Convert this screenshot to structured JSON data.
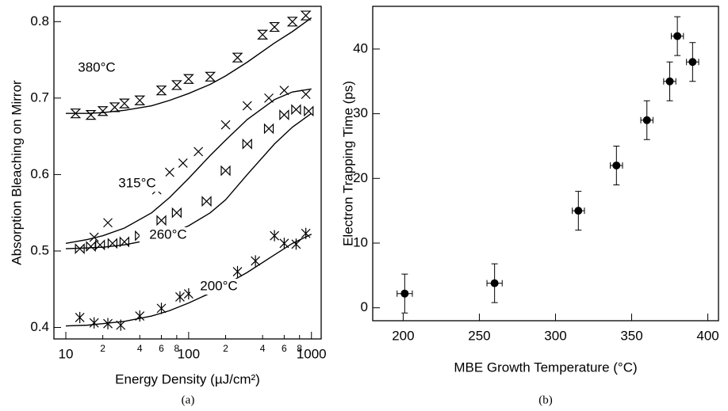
{
  "chart_data": [
    {
      "type": "line",
      "xscale": "log",
      "caption": "(a)",
      "xlabel": "Energy Density (µJ/cm²)",
      "ylabel": "Absorption Bleaching on Mirror",
      "xlim": [
        8,
        1200
      ],
      "ylim": [
        0.385,
        0.82
      ],
      "xticks": [
        10,
        {
          "value": 20,
          "label": "2"
        },
        {
          "value": 40,
          "label": "4"
        },
        {
          "value": 60,
          "label": "6"
        },
        {
          "value": 80,
          "label": "8"
        },
        100,
        {
          "value": 200,
          "label": "2"
        },
        {
          "value": 400,
          "label": "4"
        },
        {
          "value": 600,
          "label": "6"
        },
        {
          "value": 800,
          "label": "8"
        },
        1000
      ],
      "yticks": [
        0.4,
        0.5,
        0.6,
        0.7,
        0.8
      ],
      "fit_x": [
        10,
        15,
        20,
        30,
        50,
        70,
        100,
        150,
        200,
        300,
        500,
        700,
        1000
      ],
      "series": [
        {
          "name": "380°C",
          "color": "#000000",
          "marker": "hourglass",
          "x": [
            12,
            16,
            20,
            25,
            30,
            40,
            60,
            80,
            100,
            150,
            250,
            400,
            500,
            700,
            900
          ],
          "values": [
            0.68,
            0.678,
            0.683,
            0.688,
            0.693,
            0.697,
            0.71,
            0.717,
            0.725,
            0.728,
            0.753,
            0.783,
            0.793,
            0.8,
            0.808
          ],
          "fit": [
            0.68,
            0.68,
            0.681,
            0.684,
            0.69,
            0.697,
            0.706,
            0.718,
            0.729,
            0.747,
            0.772,
            0.787,
            0.805
          ]
        },
        {
          "name": "315°C",
          "color": "#000000",
          "marker": "x",
          "x": [
            17,
            22,
            55,
            70,
            90,
            120,
            200,
            300,
            450,
            600,
            900
          ],
          "values": [
            0.518,
            0.537,
            0.58,
            0.603,
            0.615,
            0.63,
            0.665,
            0.69,
            0.7,
            0.71,
            0.705
          ],
          "fit": [
            0.51,
            0.515,
            0.52,
            0.53,
            0.55,
            0.57,
            0.595,
            0.625,
            0.645,
            0.672,
            0.698,
            0.708,
            0.712
          ]
        },
        {
          "name": "260°C",
          "color": "#000000",
          "marker": "bowtie",
          "x": [
            13,
            16,
            19,
            24,
            30,
            40,
            60,
            80,
            140,
            200,
            300,
            450,
            600,
            750,
            950
          ],
          "values": [
            0.503,
            0.506,
            0.508,
            0.51,
            0.512,
            0.52,
            0.54,
            0.55,
            0.565,
            0.605,
            0.64,
            0.66,
            0.678,
            0.685,
            0.683
          ],
          "fit": [
            0.503,
            0.504,
            0.505,
            0.508,
            0.515,
            0.522,
            0.533,
            0.55,
            0.567,
            0.6,
            0.64,
            0.662,
            0.68
          ]
        },
        {
          "name": "200°C",
          "color": "#000000",
          "marker": "asterisk",
          "x": [
            13,
            17,
            22,
            28,
            40,
            60,
            85,
            100,
            150,
            250,
            350,
            500,
            600,
            750,
            900
          ],
          "values": [
            0.413,
            0.406,
            0.405,
            0.403,
            0.415,
            0.425,
            0.44,
            0.444,
            0.453,
            0.473,
            0.487,
            0.52,
            0.51,
            0.509,
            0.523
          ],
          "fit": [
            0.402,
            0.403,
            0.405,
            0.408,
            0.415,
            0.422,
            0.432,
            0.445,
            0.456,
            0.472,
            0.495,
            0.51,
            0.522
          ]
        }
      ]
    },
    {
      "type": "scatter",
      "caption": "(b)",
      "xlabel": "MBE Growth Temperature (°C)",
      "ylabel": "Electron Trapping Time (ps)",
      "xlim": [
        180,
        407
      ],
      "ylim": [
        -2,
        46.6
      ],
      "xticks": [
        200,
        250,
        300,
        350,
        400
      ],
      "yticks": [
        0,
        10,
        20,
        30,
        40
      ],
      "color": "#000000",
      "x": [
        201,
        260,
        315,
        340,
        360,
        375,
        380,
        390
      ],
      "xerr": [
        5,
        5,
        4,
        4,
        4,
        4,
        4,
        4
      ],
      "values": [
        2.2,
        3.8,
        15,
        22,
        29,
        35,
        42,
        38
      ],
      "yerr": [
        3,
        3,
        3,
        3,
        3,
        3,
        3,
        3
      ]
    }
  ]
}
